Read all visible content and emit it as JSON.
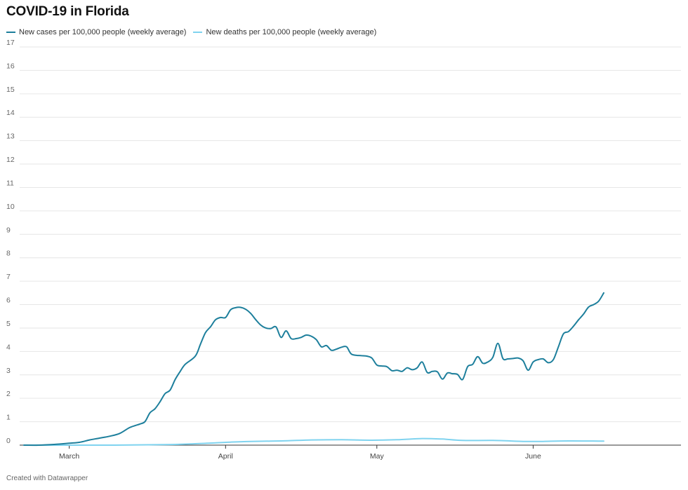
{
  "chart_data": {
    "type": "line",
    "title": "COVID-19 in Florida",
    "footer": "Created with Datawrapper",
    "xlabel": "",
    "ylabel": "",
    "ylim": [
      0,
      17
    ],
    "yticks": [
      0,
      1,
      2,
      3,
      4,
      5,
      6,
      7,
      8,
      9,
      10,
      11,
      12,
      13,
      14,
      15,
      16,
      17
    ],
    "xlim": [
      "2020-02-21",
      "2020-06-15"
    ],
    "x_ticks": [
      {
        "date": "2020-03-01",
        "label": "March"
      },
      {
        "date": "2020-04-01",
        "label": "April"
      },
      {
        "date": "2020-05-01",
        "label": "May"
      },
      {
        "date": "2020-06-01",
        "label": "June"
      }
    ],
    "grid": true,
    "legend_position": "top-left",
    "series": [
      {
        "name": "New cases per 100,000 people (weekly average)",
        "color": "#1d7f9c",
        "points": [
          [
            "2020-02-21",
            0.0
          ],
          [
            "2020-02-24",
            0.0
          ],
          [
            "2020-02-27",
            0.03
          ],
          [
            "2020-03-01",
            0.08
          ],
          [
            "2020-03-03",
            0.12
          ],
          [
            "2020-03-05",
            0.22
          ],
          [
            "2020-03-07",
            0.3
          ],
          [
            "2020-03-09",
            0.38
          ],
          [
            "2020-03-11",
            0.5
          ],
          [
            "2020-03-13",
            0.75
          ],
          [
            "2020-03-15",
            0.9
          ],
          [
            "2020-03-16",
            1.0
          ],
          [
            "2020-03-17",
            1.38
          ],
          [
            "2020-03-18",
            1.55
          ],
          [
            "2020-03-19",
            1.85
          ],
          [
            "2020-03-20",
            2.2
          ],
          [
            "2020-03-21",
            2.35
          ],
          [
            "2020-03-22",
            2.8
          ],
          [
            "2020-03-23",
            3.15
          ],
          [
            "2020-03-24",
            3.45
          ],
          [
            "2020-03-26",
            3.8
          ],
          [
            "2020-03-27",
            4.3
          ],
          [
            "2020-03-28",
            4.8
          ],
          [
            "2020-03-29",
            5.05
          ],
          [
            "2020-03-30",
            5.35
          ],
          [
            "2020-03-31",
            5.45
          ],
          [
            "2020-04-01",
            5.45
          ],
          [
            "2020-04-02",
            5.78
          ],
          [
            "2020-04-03",
            5.87
          ],
          [
            "2020-04-04",
            5.88
          ],
          [
            "2020-04-05",
            5.8
          ],
          [
            "2020-04-06",
            5.62
          ],
          [
            "2020-04-07",
            5.35
          ],
          [
            "2020-04-08",
            5.12
          ],
          [
            "2020-04-09",
            5.0
          ],
          [
            "2020-04-10",
            4.98
          ],
          [
            "2020-04-11",
            5.05
          ],
          [
            "2020-04-12",
            4.6
          ],
          [
            "2020-04-13",
            4.88
          ],
          [
            "2020-04-14",
            4.55
          ],
          [
            "2020-04-15",
            4.55
          ],
          [
            "2020-04-16",
            4.6
          ],
          [
            "2020-04-17",
            4.7
          ],
          [
            "2020-04-18",
            4.65
          ],
          [
            "2020-04-19",
            4.5
          ],
          [
            "2020-04-20",
            4.2
          ],
          [
            "2020-04-21",
            4.25
          ],
          [
            "2020-04-22",
            4.05
          ],
          [
            "2020-04-23",
            4.1
          ],
          [
            "2020-04-24",
            4.18
          ],
          [
            "2020-04-25",
            4.2
          ],
          [
            "2020-04-26",
            3.88
          ],
          [
            "2020-04-28",
            3.82
          ],
          [
            "2020-04-29",
            3.8
          ],
          [
            "2020-04-30",
            3.72
          ],
          [
            "2020-05-01",
            3.42
          ],
          [
            "2020-05-02",
            3.38
          ],
          [
            "2020-05-03",
            3.35
          ],
          [
            "2020-05-04",
            3.18
          ],
          [
            "2020-05-05",
            3.2
          ],
          [
            "2020-05-06",
            3.15
          ],
          [
            "2020-05-07",
            3.3
          ],
          [
            "2020-05-08",
            3.22
          ],
          [
            "2020-05-09",
            3.3
          ],
          [
            "2020-05-10",
            3.55
          ],
          [
            "2020-05-11",
            3.1
          ],
          [
            "2020-05-12",
            3.15
          ],
          [
            "2020-05-13",
            3.13
          ],
          [
            "2020-05-14",
            2.82
          ],
          [
            "2020-05-15",
            3.08
          ],
          [
            "2020-05-16",
            3.05
          ],
          [
            "2020-05-17",
            3.02
          ],
          [
            "2020-05-18",
            2.8
          ],
          [
            "2020-05-19",
            3.35
          ],
          [
            "2020-05-20",
            3.45
          ],
          [
            "2020-05-21",
            3.78
          ],
          [
            "2020-05-22",
            3.5
          ],
          [
            "2020-05-23",
            3.55
          ],
          [
            "2020-05-24",
            3.75
          ],
          [
            "2020-05-25",
            4.35
          ],
          [
            "2020-05-26",
            3.7
          ],
          [
            "2020-05-27",
            3.68
          ],
          [
            "2020-05-28",
            3.7
          ],
          [
            "2020-05-29",
            3.72
          ],
          [
            "2020-05-30",
            3.6
          ],
          [
            "2020-05-31",
            3.2
          ],
          [
            "2020-06-01",
            3.55
          ],
          [
            "2020-06-02",
            3.65
          ],
          [
            "2020-06-03",
            3.68
          ],
          [
            "2020-06-04",
            3.52
          ],
          [
            "2020-06-05",
            3.65
          ],
          [
            "2020-06-06",
            4.2
          ],
          [
            "2020-06-07",
            4.75
          ],
          [
            "2020-06-08",
            4.85
          ],
          [
            "2020-06-09",
            5.08
          ],
          [
            "2020-06-10",
            5.35
          ],
          [
            "2020-06-11",
            5.6
          ],
          [
            "2020-06-12",
            5.9
          ],
          [
            "2020-06-13",
            6.0
          ],
          [
            "2020-06-14",
            6.15
          ],
          [
            "2020-06-15",
            6.5
          ]
        ]
      },
      {
        "name": "New deaths per 100,000 people (weekly average)",
        "color": "#7fd3ef",
        "points": [
          [
            "2020-02-21",
            0.0
          ],
          [
            "2020-03-10",
            0.0
          ],
          [
            "2020-03-20",
            0.02
          ],
          [
            "2020-03-25",
            0.05
          ],
          [
            "2020-03-30",
            0.1
          ],
          [
            "2020-04-02",
            0.13
          ],
          [
            "2020-04-06",
            0.16
          ],
          [
            "2020-04-12",
            0.18
          ],
          [
            "2020-04-18",
            0.22
          ],
          [
            "2020-04-24",
            0.23
          ],
          [
            "2020-04-30",
            0.21
          ],
          [
            "2020-05-05",
            0.23
          ],
          [
            "2020-05-10",
            0.28
          ],
          [
            "2020-05-14",
            0.26
          ],
          [
            "2020-05-18",
            0.2
          ],
          [
            "2020-05-24",
            0.2
          ],
          [
            "2020-05-30",
            0.16
          ],
          [
            "2020-06-03",
            0.16
          ],
          [
            "2020-06-08",
            0.18
          ],
          [
            "2020-06-15",
            0.17
          ]
        ]
      }
    ]
  }
}
